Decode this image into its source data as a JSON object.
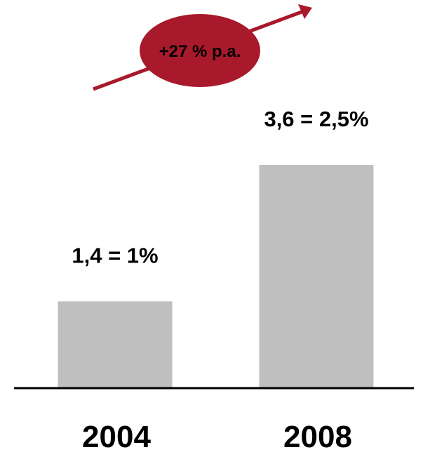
{
  "chart_data": {
    "type": "bar",
    "categories": [
      "2004",
      "2008"
    ],
    "values": [
      1.4,
      3.6
    ],
    "data_labels": [
      "1,4 = 1%",
      "3,6 = 2,5%"
    ],
    "annotation": "+27 % p.a.",
    "title": "",
    "xlabel": "",
    "ylabel": "",
    "ylim": [
      0,
      3.6
    ],
    "grid": false,
    "legend": "none"
  },
  "colors": {
    "bar": "#c0c0c0",
    "accent": "#a8192b",
    "baseline": "#000000",
    "text": "#000000",
    "annotation_text": "#ffffff"
  }
}
